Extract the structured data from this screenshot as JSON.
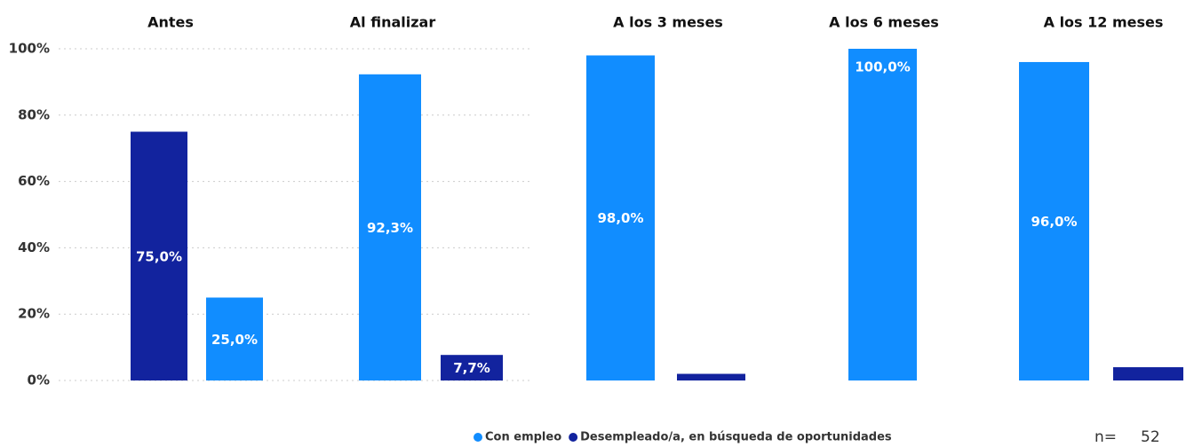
{
  "chart_data": {
    "type": "bar",
    "categories": [
      "Antes",
      "Al finalizar",
      "A los 3 meses",
      "A los 6 meses",
      "A los 12 meses"
    ],
    "series": [
      {
        "name": "Con empleo",
        "color": "#118DFF",
        "values": [
          25.0,
          92.3,
          98.0,
          100.0,
          96.0
        ],
        "value_labels": [
          "25,0%",
          "92,3%",
          "98,0%",
          "100,0%",
          "96,0%"
        ]
      },
      {
        "name": "Desempleado/a, en búsqueda de oportunidades",
        "color": "#12239E",
        "values": [
          75.0,
          7.7,
          2,
          null,
          4
        ],
        "value_labels": [
          "75,0%",
          "7,7%",
          null,
          null,
          null
        ]
      }
    ],
    "ylim": [
      0,
      100
    ],
    "yticks": [
      {
        "value": 0,
        "label": "0%"
      },
      {
        "value": 20,
        "label": "20%"
      },
      {
        "value": 40,
        "label": "40%"
      },
      {
        "value": 60,
        "label": "60%"
      },
      {
        "value": 80,
        "label": "80%"
      },
      {
        "value": 100,
        "label": "100%"
      }
    ],
    "grid": true,
    "sample_size_label": "n=",
    "sample_size": 52
  }
}
